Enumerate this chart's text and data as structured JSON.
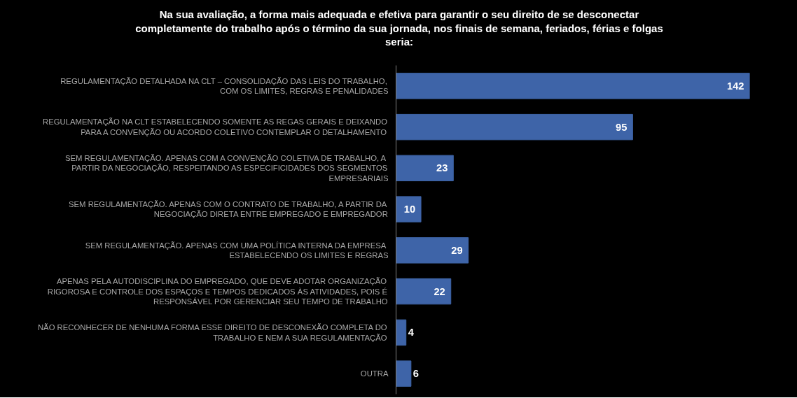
{
  "chart_data": {
    "type": "bar",
    "orientation": "horizontal",
    "title": "Na sua avaliação, a forma mais adequada e efetiva para garantir o seu direito de se desconectar\ncompletamente do trabalho após o término da sua jornada, nos finais de semana, feriados, férias e folgas\nseria:",
    "categories": [
      "REGULAMENTAÇÃO DETALHADA NA CLT – CONSOLIDAÇÃO DAS LEIS DO TRABALHO,\nCOM OS LIMITES, REGRAS E PENALIDADES",
      "REGULAMENTAÇÃO NA CLT ESTABELECENDO SOMENTE AS REGAS GERAIS E DEIXANDO\nPARA A CONVENÇÃO OU ACORDO COLETIVO CONTEMPLAR O DETALHAMENTO",
      "SEM REGULAMENTAÇÃO. APENAS COM A CONVENÇÃO COLETIVA DE TRABALHO, A\nPARTIR DA NEGOCIAÇÃO, RESPEITANDO AS ESPECIFICIDADES DOS SEGMENTOS\nEMPRESARIAIS",
      "SEM REGULAMENTAÇÃO. APENAS COM O CONTRATO DE TRABALHO, A PARTIR DA\nNEGOCIAÇÃO DIRETA ENTRE EMPREGADO E EMPREGADOR",
      "SEM REGULAMENTAÇÃO. APENAS COM UMA POLÍTICA INTERNA DA EMPRESA\nESTABELECENDO OS LIMITES E REGRAS",
      "APENAS PELA AUTODISCIPLINA DO EMPREGADO, QUE DEVE ADOTAR ORGANIZAÇÃO\nRIGOROSA E CONTROLE DOS ESPAÇOS E TEMPOS DEDICADOS ÀS ATIVIDADES, POIS É\nRESPONSÁVEL POR GERENCIAR SEU TEMPO DE TRABALHO",
      "NÃO RECONHECER DE NENHUMA FORMA ESSE DIREITO DE DESCONEXÃO COMPLETA DO\nTRABALHO E NEM A SUA REGULAMENTAÇÃO",
      "OUTRA"
    ],
    "values": [
      142,
      95,
      23,
      10,
      29,
      22,
      4,
      6
    ],
    "color": "#3e64a8",
    "data_labels": true
  }
}
